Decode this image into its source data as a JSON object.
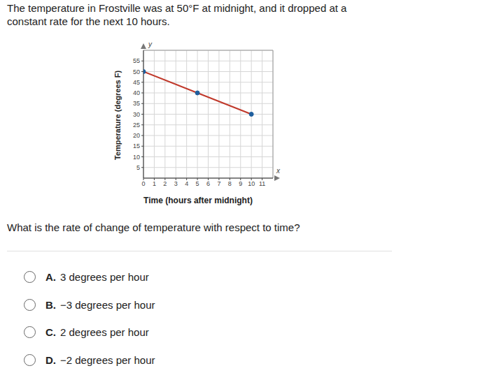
{
  "problem": {
    "text": "The temperature in Frostville was at 50°F at midnight, and it dropped at a constant rate for the next 10 hours.",
    "question": "What is the rate of change of temperature with respect to time?",
    "options": [
      {
        "letter": "A.",
        "text": "3 degrees per hour"
      },
      {
        "letter": "B.",
        "text": "−3 degrees per hour"
      },
      {
        "letter": "C.",
        "text": "2 degrees per hour"
      },
      {
        "letter": "D.",
        "text": "−2 degrees per hour"
      }
    ]
  },
  "chart_data": {
    "type": "line",
    "x_label": "Time (hours after midnight)",
    "y_label": "Temperature (degrees F)",
    "x_axis_letter": "x",
    "y_axis_letter": "y",
    "x": [
      0,
      5,
      10
    ],
    "values": [
      50,
      40,
      30
    ],
    "color": "#c0392b",
    "marker": "circle",
    "xlim": [
      0,
      12
    ],
    "ylim": [
      0,
      60
    ],
    "xticks": [
      0,
      1,
      2,
      3,
      4,
      5,
      6,
      7,
      8,
      9,
      10,
      11
    ],
    "yticks": [
      5,
      10,
      15,
      20,
      25,
      30,
      35,
      40,
      45,
      50,
      55
    ],
    "grid": true
  }
}
